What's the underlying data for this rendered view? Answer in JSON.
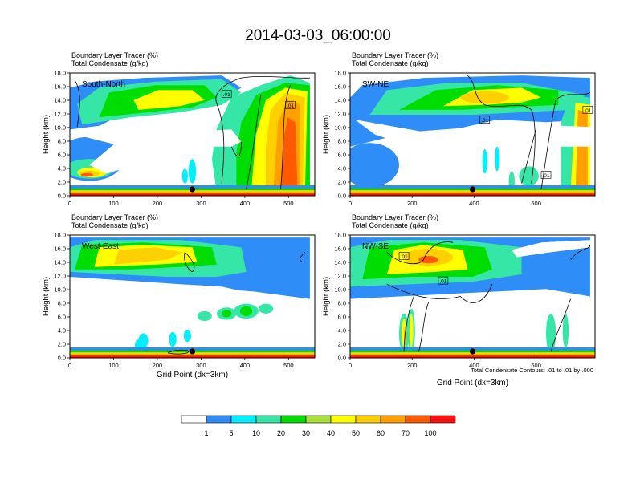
{
  "title": "2014-03-03_06:00:00",
  "footnote": "Total Condensate Contours: .01 to .01 by .000",
  "colorbar": {
    "labels": [
      "1",
      "5",
      "10",
      "20",
      "30",
      "40",
      "50",
      "60",
      "70",
      "100"
    ],
    "colors": [
      "#ffffff",
      "#2f8df7",
      "#00f0ff",
      "#35e6a6",
      "#00dd00",
      "#a8e23b",
      "#ffff00",
      "#ffd000",
      "#ffa000",
      "#ff5a00",
      "#ff1010"
    ]
  },
  "chart_data": [
    {
      "type": "heatmap",
      "label": "South-North",
      "subtitle_line1": "Boundary Layer Tracer    (%)",
      "subtitle_line2": "Total Condensate   (g/kg)",
      "ylabel": "Height (km)",
      "xlabel": "",
      "xlim": [
        0,
        560
      ],
      "ylim": [
        0,
        18
      ],
      "xticks": [
        0,
        100,
        200,
        300,
        400,
        500
      ],
      "yticks": [
        "0.0",
        "2.0",
        "4.0",
        "6.0",
        "8.0",
        "10.0",
        "12.0",
        "14.0",
        "16.0",
        "18.0"
      ],
      "marker_x": 280,
      "contour_label": ".01"
    },
    {
      "type": "heatmap",
      "label": "SW-NE",
      "subtitle_line1": "Boundary Layer Tracer    (%)",
      "subtitle_line2": "Total Condensate   (g/kg)",
      "ylabel": "Height (km)",
      "xlabel": "",
      "xlim": [
        0,
        790
      ],
      "ylim": [
        0,
        18
      ],
      "xticks": [
        0,
        200,
        400,
        600
      ],
      "yticks": [
        "0.0",
        "2.0",
        "4.0",
        "6.0",
        "8.0",
        "10.0",
        "12.0",
        "14.0",
        "16.0",
        "18.0"
      ],
      "marker_x": 395,
      "contour_label": ".01"
    },
    {
      "type": "heatmap",
      "label": "West-East",
      "subtitle_line1": "Boundary Layer Tracer    (%)",
      "subtitle_line2": "Total Condensate   (g/kg)",
      "ylabel": "Height (km)",
      "xlabel": "Grid Point (dx=3km)",
      "xlim": [
        0,
        560
      ],
      "ylim": [
        0,
        18
      ],
      "xticks": [
        0,
        100,
        200,
        300,
        400,
        500
      ],
      "yticks": [
        "0.0",
        "2.0",
        "4.0",
        "6.0",
        "8.0",
        "10.0",
        "12.0",
        "14.0",
        "16.0",
        "18.0"
      ],
      "marker_x": 280,
      "contour_label": ".01"
    },
    {
      "type": "heatmap",
      "label": "NW-SE",
      "subtitle_line1": "Boundary Layer Tracer    (%)",
      "subtitle_line2": "Total Condensate   (g/kg)",
      "ylabel": "Height (km)",
      "xlabel": "Grid Point (dx=3km)",
      "xlim": [
        0,
        790
      ],
      "ylim": [
        0,
        18
      ],
      "xticks": [
        0,
        200,
        400,
        600
      ],
      "yticks": [
        "0.0",
        "2.0",
        "4.0",
        "6.0",
        "8.0",
        "10.0",
        "12.0",
        "14.0",
        "16.0",
        "18.0"
      ],
      "marker_x": 395,
      "contour_label": ".01"
    }
  ]
}
